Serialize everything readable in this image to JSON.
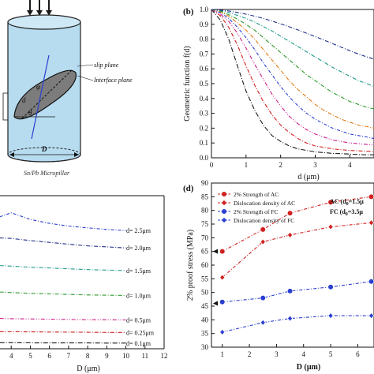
{
  "colors": {
    "black": "#1a1a1a",
    "red": "#d0201f",
    "magenta": "#cc1f8a",
    "orange": "#e07a16",
    "green": "#2e9a2e",
    "teal": "#1f9a8a",
    "blue": "#2a3fd0",
    "navy": "#1e2f8a",
    "pillar": "#b7dcf0",
    "plane": "#7c7c7c"
  },
  "panel_a": {
    "slip_plane": "slip plane",
    "interface_plane": "Interface plane",
    "caption": "Sn/Pb Micropillar",
    "dim_d": "d",
    "dim_D": "D",
    "angle": "θ",
    "phi": "φ"
  },
  "chart_data": [
    {
      "panel": "(b)",
      "type": "line",
      "xlabel": "d (μm)",
      "ylabel": "Geometric function f(d)",
      "xlim": [
        0,
        4.7
      ],
      "ylim": [
        0.0,
        1.0
      ],
      "xticks": [
        "0",
        "1",
        "2",
        "3",
        "4"
      ],
      "yticks": [
        "0.0",
        "0.1",
        "0.2",
        "0.3",
        "0.4",
        "0.5",
        "0.6",
        "0.7",
        "0.8",
        "0.9",
        "1.0"
      ],
      "x": [
        0,
        0.25,
        0.5,
        0.75,
        1.0,
        1.25,
        1.5,
        1.75,
        2.0,
        2.25,
        2.5,
        2.75,
        3.0,
        3.25,
        3.5,
        3.75,
        4.0,
        4.25,
        4.5,
        4.7
      ],
      "series": [
        {
          "color": "black",
          "values": [
            1.0,
            0.93,
            0.8,
            0.62,
            0.45,
            0.32,
            0.22,
            0.15,
            0.11,
            0.08,
            0.06,
            0.05,
            0.04,
            0.035,
            0.03,
            0.028,
            0.025,
            0.022,
            0.02,
            0.02
          ]
        },
        {
          "color": "red",
          "values": [
            1.0,
            0.96,
            0.88,
            0.76,
            0.62,
            0.49,
            0.38,
            0.29,
            0.22,
            0.17,
            0.13,
            0.1,
            0.08,
            0.07,
            0.06,
            0.055,
            0.05,
            0.047,
            0.044,
            0.042
          ]
        },
        {
          "color": "magenta",
          "values": [
            1.0,
            0.97,
            0.92,
            0.84,
            0.74,
            0.63,
            0.53,
            0.43,
            0.35,
            0.28,
            0.23,
            0.19,
            0.16,
            0.14,
            0.12,
            0.11,
            0.1,
            0.095,
            0.09,
            0.085
          ]
        },
        {
          "color": "blue",
          "values": [
            1.0,
            0.98,
            0.94,
            0.88,
            0.81,
            0.73,
            0.64,
            0.56,
            0.48,
            0.41,
            0.35,
            0.3,
            0.26,
            0.23,
            0.2,
            0.18,
            0.16,
            0.15,
            0.14,
            0.13
          ]
        },
        {
          "color": "orange",
          "values": [
            1.0,
            0.985,
            0.955,
            0.91,
            0.86,
            0.8,
            0.73,
            0.66,
            0.59,
            0.52,
            0.46,
            0.41,
            0.36,
            0.32,
            0.29,
            0.26,
            0.24,
            0.22,
            0.21,
            0.2
          ]
        },
        {
          "color": "green",
          "values": [
            1.0,
            0.99,
            0.965,
            0.935,
            0.9,
            0.86,
            0.81,
            0.76,
            0.71,
            0.66,
            0.61,
            0.56,
            0.52,
            0.48,
            0.44,
            0.41,
            0.38,
            0.36,
            0.34,
            0.33
          ]
        },
        {
          "color": "teal",
          "values": [
            1.0,
            0.993,
            0.98,
            0.96,
            0.94,
            0.915,
            0.885,
            0.855,
            0.82,
            0.785,
            0.75,
            0.715,
            0.68,
            0.645,
            0.61,
            0.58,
            0.55,
            0.52,
            0.5,
            0.48
          ]
        },
        {
          "color": "navy",
          "values": [
            1.0,
            0.996,
            0.99,
            0.98,
            0.968,
            0.955,
            0.94,
            0.922,
            0.903,
            0.883,
            0.862,
            0.84,
            0.817,
            0.794,
            0.77,
            0.746,
            0.722,
            0.7,
            0.68,
            0.665
          ]
        }
      ]
    },
    {
      "panel": "",
      "type": "line",
      "xlabel": "D (μm)",
      "xlim": [
        3.4,
        12
      ],
      "xticks": [
        "4",
        "5",
        "6",
        "7",
        "8",
        "9",
        "10",
        "11",
        "12"
      ],
      "x": [
        3.4,
        4,
        5,
        6,
        7,
        8,
        9,
        10
      ],
      "series": [
        {
          "name": "d= 2.5μm",
          "color": "blue",
          "values": [
            50,
            51.5,
            49,
            47.5,
            46.5,
            45.8,
            45.2,
            44.8
          ]
        },
        {
          "name": "d= 2.0μm",
          "color": "navy",
          "values": [
            42,
            41.8,
            41,
            40.3,
            39.6,
            39.0,
            38.6,
            38.2
          ]
        },
        {
          "name": "d= 1.5μm",
          "color": "teal",
          "values": [
            31.5,
            31.3,
            30.9,
            30.6,
            30.3,
            30.0,
            29.8,
            29.6
          ]
        },
        {
          "name": "d= 1.0μm",
          "color": "green",
          "values": [
            21.5,
            21.3,
            21.0,
            20.8,
            20.6,
            20.4,
            20.3,
            20.2
          ]
        },
        {
          "name": "d= 0.5μm",
          "color": "magenta",
          "values": [
            11.5,
            11.4,
            11.3,
            11.2,
            11.1,
            11.0,
            11.0,
            10.9
          ]
        },
        {
          "name": "d= 0.25μm",
          "color": "red",
          "values": [
            6.5,
            6.45,
            6.4,
            6.35,
            6.3,
            6.25,
            6.2,
            6.2
          ]
        },
        {
          "name": "d= 0.1μm",
          "color": "black",
          "values": [
            2.3,
            2.3,
            2.25,
            2.2,
            2.2,
            2.2,
            2.15,
            2.15
          ]
        }
      ]
    },
    {
      "panel": "(d)",
      "type": "line",
      "xlabel": "D (μm)",
      "ylabel": "2% proof stress (MPa)",
      "xlim": [
        0.6,
        6.6
      ],
      "ylim": [
        30,
        90
      ],
      "xticks": [
        "1",
        "2",
        "3",
        "4",
        "5",
        "6"
      ],
      "yticks": [
        "30",
        "35",
        "40",
        "45",
        "50",
        "55",
        "60",
        "65",
        "70",
        "75",
        "80",
        "85",
        "90"
      ],
      "annotations": [
        "AC (d",
        "FC (d",
        "0",
        "=1.5μ",
        "=3.5μ"
      ],
      "x": [
        1,
        2.5,
        3.5,
        5,
        6.5
      ],
      "series": [
        {
          "name": "2% Strength of AC",
          "color": "red",
          "marker": "circle",
          "values": [
            65,
            73,
            79,
            83,
            85
          ]
        },
        {
          "name": "Dislocation density of AC",
          "color": "red",
          "marker": "diamond",
          "values": [
            55.5,
            68.5,
            71,
            74,
            75.5
          ]
        },
        {
          "name": "2% Strength of FC",
          "color": "blue",
          "marker": "circle",
          "values": [
            46.5,
            48,
            50.5,
            52,
            54
          ]
        },
        {
          "name": "Dislocation density of FC",
          "color": "blue",
          "marker": "diamond",
          "values": [
            35.5,
            39,
            40.5,
            41.5,
            41.5
          ]
        }
      ],
      "arrows": [
        {
          "x": 1,
          "y": 65
        },
        {
          "x": 1,
          "y": 46
        }
      ]
    }
  ]
}
